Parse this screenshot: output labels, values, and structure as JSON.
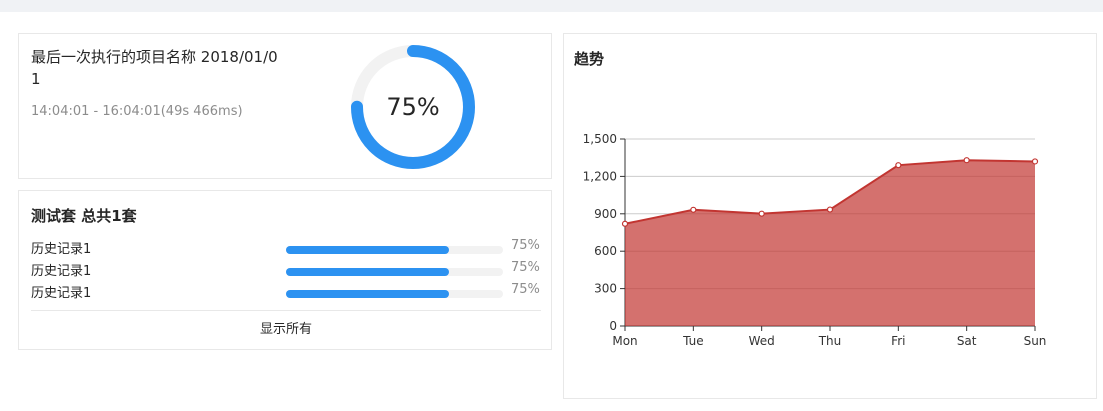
{
  "execution": {
    "title": "最后一次执行的项目名称 2018/01/01",
    "time_range": "14:04:01 - 16:04:01(49s 466ms)",
    "progress_percent": 75,
    "progress_label": "75%",
    "colors": {
      "accent": "#2c92f1",
      "track": "#f2f2f2"
    }
  },
  "suite": {
    "title": "测试套 总共1套",
    "items": [
      {
        "label": "历史记录1",
        "percent": 75,
        "percent_label": "75%"
      },
      {
        "label": "历史记录1",
        "percent": 75,
        "percent_label": "75%"
      },
      {
        "label": "历史记录1",
        "percent": 75,
        "percent_label": "75%"
      }
    ],
    "show_all_label": "显示所有"
  },
  "trend": {
    "title": "趋势",
    "color": "#c23531"
  },
  "chart_data": {
    "type": "area",
    "title": "趋势",
    "categories": [
      "Mon",
      "Tue",
      "Wed",
      "Thu",
      "Fri",
      "Sat",
      "Sun"
    ],
    "values": [
      820,
      932,
      901,
      934,
      1290,
      1330,
      1320
    ],
    "ylim": [
      0,
      1500
    ],
    "yticks": [
      0,
      300,
      600,
      900,
      1200,
      1500
    ],
    "ytick_labels": [
      "0",
      "300",
      "600",
      "900",
      "1,200",
      "1,500"
    ],
    "grid": true,
    "xlabel": "",
    "ylabel": ""
  }
}
